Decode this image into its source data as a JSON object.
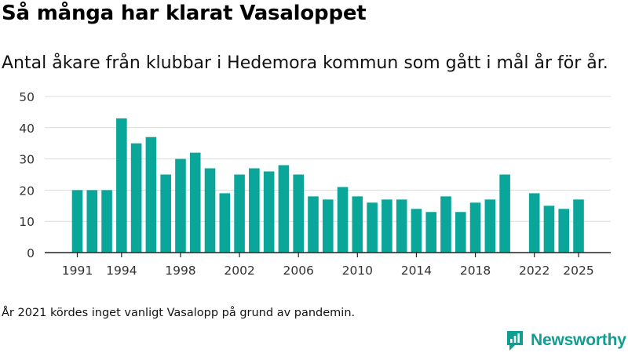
{
  "title": "Så många har klarat Vasaloppet",
  "subtitle": "Antal åkare från klubbar i Hedemora kommun som gått i mål år för år.",
  "footnote": "År 2021 kördes inget vanligt Vasalopp på grund av pandemin.",
  "brand": {
    "name": "Newsworthy",
    "color": "#0f9e94",
    "icon": "newsworthy-logo-icon"
  },
  "colors": {
    "bar": "#0aa69a",
    "grid": "#dcdcdc",
    "axis": "#222222",
    "tick_text": "#333333"
  },
  "chart_data": {
    "type": "bar",
    "title": "Så många har klarat Vasaloppet",
    "subtitle": "Antal åkare från klubbar i Hedemora kommun som gått i mål år för år.",
    "xlabel": "",
    "ylabel": "",
    "x": [
      1991,
      1992,
      1993,
      1994,
      1995,
      1996,
      1997,
      1998,
      1999,
      2000,
      2001,
      2002,
      2003,
      2004,
      2005,
      2006,
      2007,
      2008,
      2009,
      2010,
      2011,
      2012,
      2013,
      2014,
      2015,
      2016,
      2017,
      2018,
      2019,
      2020,
      2021,
      2022,
      2023,
      2024,
      2025
    ],
    "values": [
      20,
      20,
      20,
      43,
      35,
      37,
      25,
      30,
      32,
      27,
      19,
      25,
      27,
      26,
      28,
      25,
      18,
      17,
      21,
      18,
      16,
      17,
      17,
      14,
      13,
      18,
      13,
      16,
      17,
      25,
      null,
      19,
      15,
      14,
      17
    ],
    "ylim": [
      0,
      50
    ],
    "yticks": [
      0,
      10,
      20,
      30,
      40,
      50
    ],
    "xtick_labels": [
      "1991",
      "1994",
      "1998",
      "2002",
      "2006",
      "2010",
      "2014",
      "2018",
      "2022",
      "2025"
    ],
    "grid": true,
    "legend": "none"
  }
}
